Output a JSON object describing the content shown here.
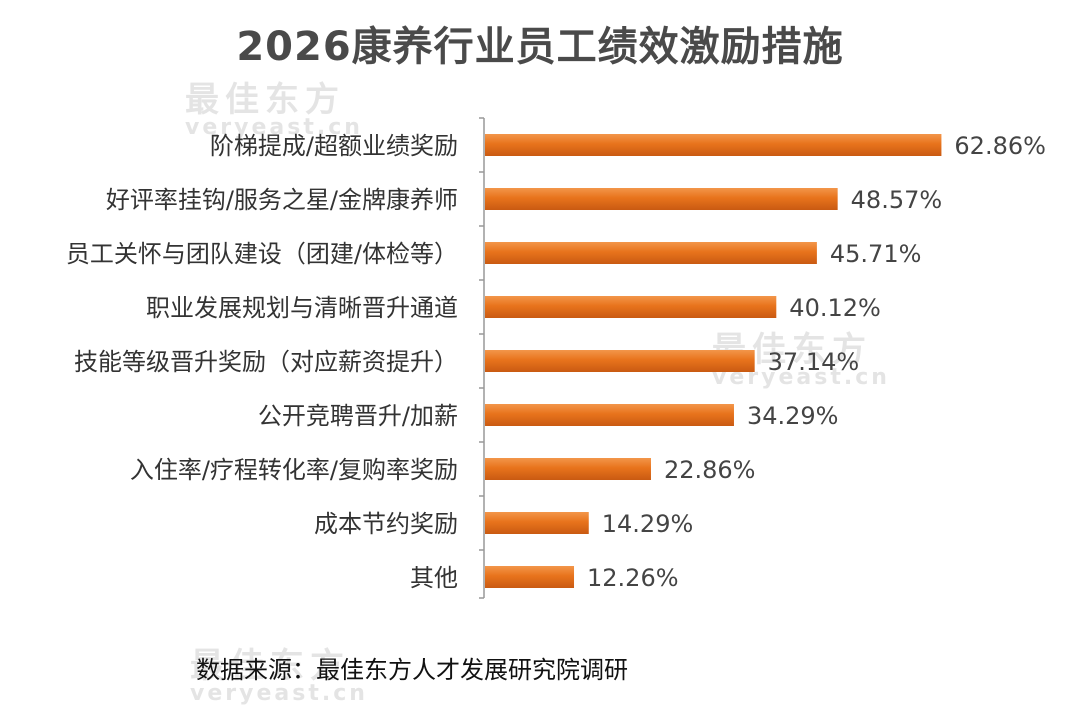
{
  "chart_data": {
    "type": "bar",
    "orientation": "horizontal",
    "title": "2026康养行业员工绩效激励措施",
    "categories": [
      "阶梯提成/超额业绩奖励",
      "好评率挂钩/服务之星/金牌康养师",
      "员工关怀与团队建设（团建/体检等）",
      "职业发展规划与清晰晋升通道",
      "技能等级晋升奖励（对应薪资提升）",
      "公开竞聘晋升/加薪",
      "入住率/疗程转化率/复购率奖励",
      "成本节约奖励",
      "其他"
    ],
    "values": [
      62.86,
      48.57,
      45.71,
      40.12,
      37.14,
      34.29,
      22.86,
      14.29,
      12.26
    ],
    "value_labels": [
      "62.86%",
      "48.57%",
      "45.71%",
      "40.12%",
      "37.14%",
      "34.29%",
      "22.86%",
      "14.29%",
      "12.26%"
    ],
    "unit": "%",
    "xlim": [
      0,
      70
    ],
    "grid": false,
    "legend": "none",
    "colors": {
      "bar": "#e8731c",
      "bar_dark": "#c95a12",
      "bar_light": "#f3964a",
      "axis": "#999999",
      "label": "#333333"
    }
  },
  "source": "数据来源：最佳东方人才发展研究院调研",
  "watermark": {
    "cn": "最佳东方",
    "en": "veryeast.cn"
  }
}
